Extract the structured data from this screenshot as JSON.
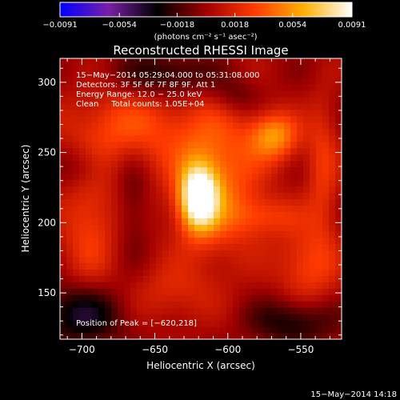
{
  "chart_data": {
    "type": "heatmap",
    "title": "Reconstructed RHESSI Image",
    "xlabel": "Heliocentric X (arcsec)",
    "ylabel": "Heliocentric Y (arcsec)",
    "xlim": [
      -715,
      -522
    ],
    "ylim": [
      117,
      317
    ],
    "x_ticks": [
      -700,
      -650,
      -600,
      -550
    ],
    "y_ticks": [
      150,
      200,
      250,
      300
    ],
    "colorbar": {
      "range": [
        -0.0091,
        0.0091
      ],
      "ticks": [
        -0.0091,
        -0.0054,
        -0.0018,
        0.0018,
        0.0054,
        0.0091
      ],
      "tick_labels": [
        "−0.0091",
        "−0.0054",
        "−0.0018",
        "0.0018",
        "0.0054",
        "0.0091"
      ],
      "stops": [
        "#0000ff",
        "#7a1fa8",
        "#000000",
        "#a00000",
        "#ff3b00",
        "#ffb000",
        "#ffffff"
      ]
    },
    "units_label": "(photons cm⁻² s⁻¹ asec⁻²)",
    "annotations": [
      "15−May−2014 05:29:04.000 to 05:31:08.000",
      "Detectors: 3F 5F 6F 7F 8F 9F, Att 1",
      "Energy Range: 12.0 − 25.0 keV",
      "Clean     Total counts: 1.05E+04"
    ],
    "peak_label": "Position of Peak = [−620,218]",
    "peak": [
      -620,
      218
    ],
    "sources": [
      {
        "x": -620,
        "y": 218,
        "sx": 9,
        "sy": 16,
        "amp": 0.0091
      },
      {
        "x": -608,
        "y": 232,
        "sx": 22,
        "sy": 40,
        "amp": 0.0042
      },
      {
        "x": -568,
        "y": 262,
        "sx": 12,
        "sy": 12,
        "amp": 0.005
      },
      {
        "x": -668,
        "y": 268,
        "sx": 30,
        "sy": 20,
        "amp": 0.0032
      },
      {
        "x": -695,
        "y": 200,
        "sx": 14,
        "sy": 35,
        "amp": 0.0028
      },
      {
        "x": -545,
        "y": 170,
        "sx": 15,
        "sy": 20,
        "amp": 0.003
      },
      {
        "x": -575,
        "y": 205,
        "sx": 18,
        "sy": 10,
        "amp": 0.0022
      },
      {
        "x": -640,
        "y": 150,
        "sx": 20,
        "sy": 15,
        "amp": 0.0018
      },
      {
        "x": -535,
        "y": 240,
        "sx": 8,
        "sy": 35,
        "amp": 0.0025
      },
      {
        "x": -700,
        "y": 135,
        "sx": 20,
        "sy": 15,
        "amp": -0.004
      },
      {
        "x": -640,
        "y": 305,
        "sx": 25,
        "sy": 12,
        "amp": -0.003
      },
      {
        "x": -555,
        "y": 130,
        "sx": 20,
        "sy": 12,
        "amp": -0.003
      },
      {
        "x": -700,
        "y": 240,
        "sx": 12,
        "sy": 12,
        "amp": -0.002
      },
      {
        "x": -595,
        "y": 290,
        "sx": 12,
        "sy": 10,
        "amp": -0.0018
      },
      {
        "x": -665,
        "y": 215,
        "sx": 8,
        "sy": 25,
        "amp": -0.0015
      }
    ]
  },
  "footer_timestamp": "15−May−2014 14:18"
}
